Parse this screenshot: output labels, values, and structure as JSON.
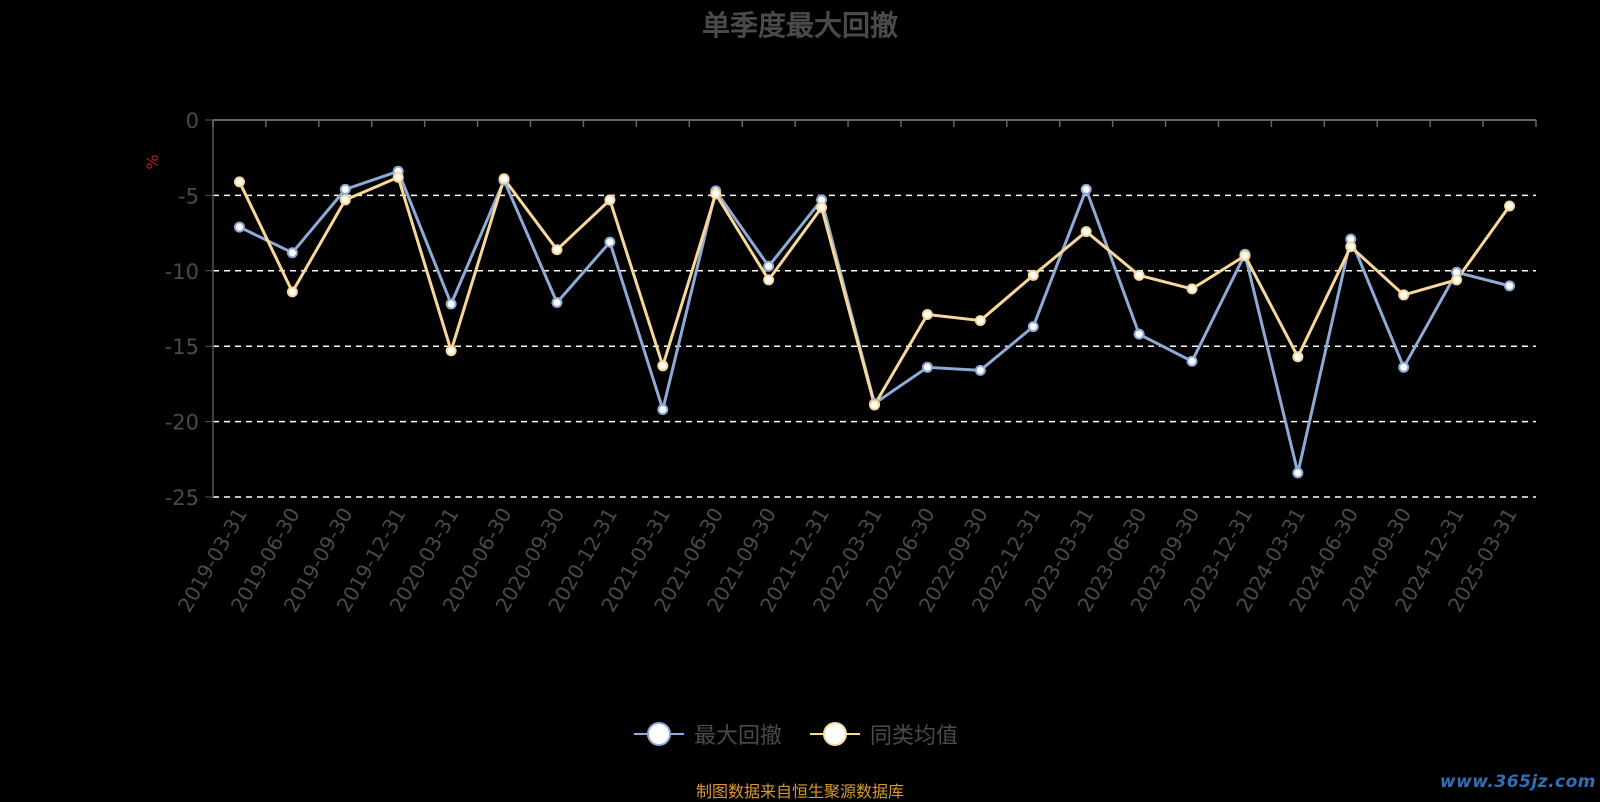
{
  "chart_data": {
    "type": "line",
    "title": "单季度最大回撤",
    "ylabel": "%",
    "xlabel": "",
    "ylim": [
      -25,
      0
    ],
    "yticks": [
      0,
      -5,
      -10,
      -15,
      -20,
      -25
    ],
    "grid": true,
    "legend_position": "bottom-center",
    "x": [
      "2019-03-31",
      "2019-06-30",
      "2019-09-30",
      "2019-12-31",
      "2020-03-31",
      "2020-06-30",
      "2020-09-30",
      "2020-12-31",
      "2021-03-31",
      "2021-06-30",
      "2021-09-30",
      "2021-12-31",
      "2022-03-31",
      "2022-06-30",
      "2022-09-30",
      "2022-12-31",
      "2023-03-31",
      "2023-06-30",
      "2023-09-30",
      "2023-12-31",
      "2024-03-31",
      "2024-06-30",
      "2024-09-30",
      "2024-12-31",
      "2025-03-31"
    ],
    "series": [
      {
        "name": "最大回撤",
        "color": "#8eaad6",
        "values": [
          -7.1,
          -8.8,
          -4.6,
          -3.4,
          -12.2,
          -4.0,
          -12.1,
          -8.1,
          -19.2,
          -4.7,
          -9.7,
          -5.3,
          -18.8,
          -16.4,
          -16.6,
          -13.7,
          -4.6,
          -14.2,
          -16.0,
          -8.9,
          -23.4,
          -7.9,
          -16.4,
          -10.1,
          -11.0
        ]
      },
      {
        "name": "同类均值",
        "color": "#f7d89a",
        "values": [
          -4.1,
          -11.4,
          -5.3,
          -3.8,
          -15.3,
          -3.9,
          -8.6,
          -5.3,
          -16.3,
          -4.9,
          -10.6,
          -5.8,
          -18.9,
          -12.9,
          -13.3,
          -10.3,
          -7.4,
          -10.3,
          -11.2,
          -9.0,
          -15.7,
          -8.4,
          -11.6,
          -10.6,
          -5.7
        ]
      }
    ]
  },
  "footer": {
    "source_note": "制图数据来自恒生聚源数据库",
    "watermark": "www.365jz.com"
  }
}
